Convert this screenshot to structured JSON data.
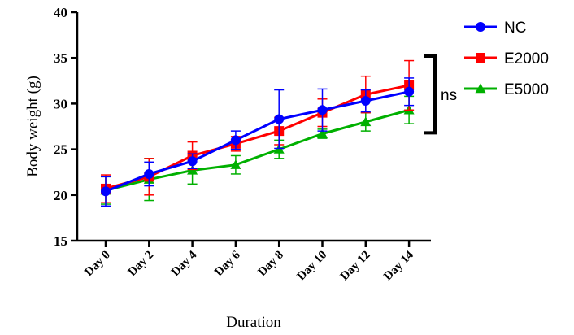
{
  "chart_data": {
    "type": "line",
    "xlabel": "Duration",
    "ylabel": "Body weight (g)",
    "categories": [
      "Day 0",
      "Day 2",
      "Day 4",
      "Day 6",
      "Day 8",
      "Day 10",
      "Day 12",
      "Day 14"
    ],
    "ylim": [
      15,
      40
    ],
    "yticks": [
      15,
      20,
      25,
      30,
      35,
      40
    ],
    "grid": false,
    "legend_position": "top-right",
    "series": [
      {
        "name": "NC",
        "color": "#0000ff",
        "marker": "circle",
        "values": [
          20.4,
          22.3,
          23.7,
          26.0,
          28.3,
          29.3,
          30.3,
          31.3
        ],
        "errors": [
          1.6,
          1.3,
          0.8,
          1.0,
          3.2,
          2.3,
          1.2,
          1.5
        ]
      },
      {
        "name": "E2000",
        "color": "#ff0000",
        "marker": "square",
        "values": [
          20.7,
          22.0,
          24.3,
          25.6,
          27.0,
          29.0,
          31.0,
          32.0
        ],
        "errors": [
          1.5,
          2.0,
          1.5,
          0.8,
          1.5,
          1.5,
          2.0,
          2.7
        ]
      },
      {
        "name": "E5000",
        "color": "#00b000",
        "marker": "triangle",
        "values": [
          20.5,
          21.7,
          22.7,
          23.3,
          25.0,
          26.7,
          28.0,
          29.3
        ],
        "errors": [
          1.5,
          2.3,
          1.5,
          1.0,
          1.0,
          0.5,
          1.0,
          1.5
        ]
      }
    ],
    "annotations": [
      {
        "text": "ns",
        "type": "bracket",
        "y_range": [
          26.8,
          35.2
        ]
      }
    ]
  }
}
